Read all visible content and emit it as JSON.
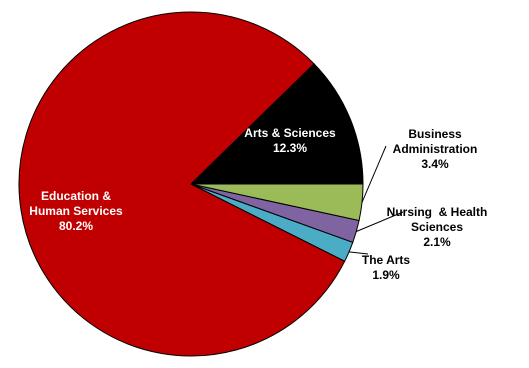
{
  "chart_data": {
    "type": "pie",
    "start_angle_deg": 0,
    "direction": "counterclockwise",
    "slices": [
      {
        "name": "Arts & Sciences",
        "value": 12.3,
        "label_lines": [
          "Arts & Sciences",
          "12.3%"
        ],
        "color": "#000000",
        "label_color": "#ffffff",
        "leader": false
      },
      {
        "name": "Education & Human Services",
        "value": 80.2,
        "label_lines": [
          "Education &",
          "Human Services",
          "80.2%"
        ],
        "color": "#c00000",
        "label_color": "#ffffff",
        "leader": false
      },
      {
        "name": "The Arts",
        "value": 1.9,
        "label_lines": [
          "The Arts",
          "1.9%"
        ],
        "color": "#4bacc6",
        "label_color": "#000000",
        "leader": true
      },
      {
        "name": "Nursing & Health Sciences",
        "value": 2.1,
        "label_lines": [
          "Nursing  & Health",
          "Sciences",
          "2.1%"
        ],
        "color": "#8064a2",
        "label_color": "#000000",
        "leader": true
      },
      {
        "name": "Business Administration",
        "value": 3.4,
        "label_lines": [
          "Business",
          "Administration",
          "3.4%"
        ],
        "color": "#9bbb59",
        "label_color": "#000000",
        "leader": true
      }
    ]
  }
}
